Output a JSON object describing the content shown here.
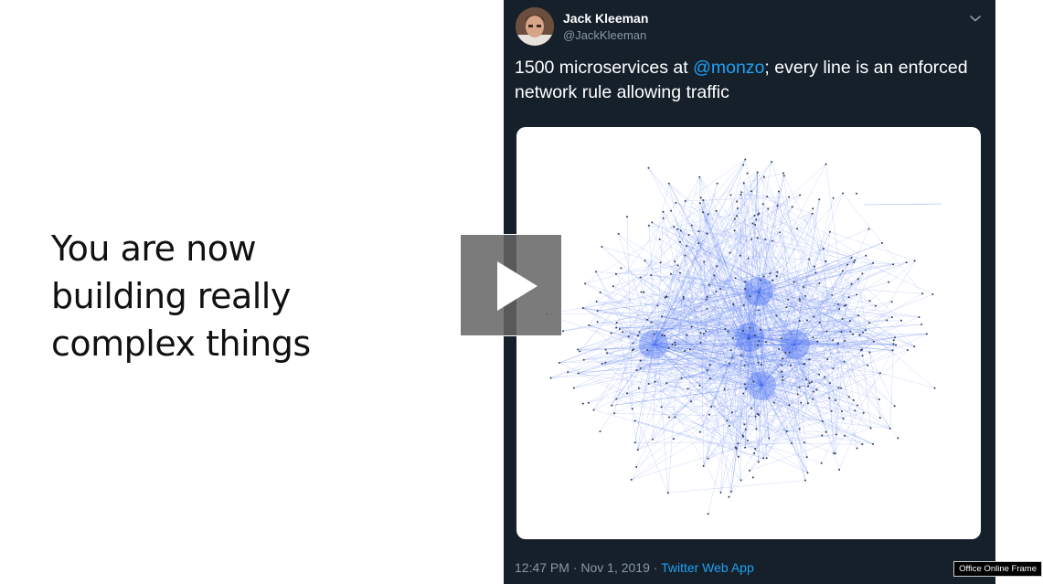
{
  "slide": {
    "headline_lines": [
      "You are now",
      "building really",
      "complex things"
    ]
  },
  "tweet": {
    "author_name": "Jack Kleeman",
    "author_handle": "@JackKleeman",
    "text_before": "1500 microservices at ",
    "mention": "@monzo",
    "text_after": "; every line is an enforced network rule allowing traffic",
    "timestamp": "12:47 PM · Nov 1, 2019 · ",
    "source": "Twitter Web App",
    "icons": [
      "chevron-down-icon",
      "avatar"
    ]
  },
  "player": {
    "icon": "play-icon"
  },
  "frame_label": "Office Online Frame",
  "colors": {
    "tweet_bg": "#15202b",
    "mention": "#1da1f2",
    "muted": "#8899a6",
    "graph_node": "#3a63f0"
  }
}
